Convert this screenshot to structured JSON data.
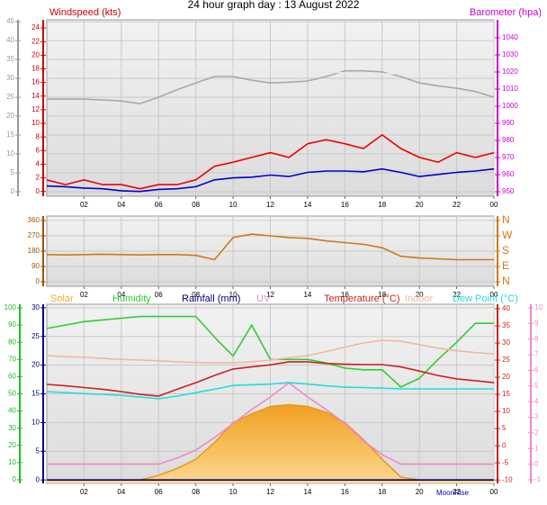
{
  "title": "24 hour graph day : 13 August 2022",
  "annotation": "MoonRise",
  "chart_data": [
    {
      "type": "line",
      "ylabel": "Windspeed (kts)",
      "y2label": "Barometer (hpa)",
      "x": [
        0,
        1,
        2,
        3,
        4,
        5,
        6,
        7,
        8,
        9,
        10,
        11,
        12,
        13,
        14,
        15,
        16,
        17,
        18,
        19,
        20,
        21,
        22,
        23,
        24
      ],
      "xlim": [
        0,
        24
      ],
      "xticks": [
        {
          "value": 2,
          "label": "02"
        },
        {
          "value": 4,
          "label": "04"
        },
        {
          "value": 6,
          "label": "06"
        },
        {
          "value": 8,
          "label": "08"
        },
        10,
        12,
        14,
        16,
        18,
        20,
        22,
        {
          "value": 24,
          "label": "00"
        }
      ],
      "ylim": [
        -0.7,
        25.2
      ],
      "yticks": [
        0,
        2,
        4,
        6,
        8,
        10,
        12,
        14,
        16,
        18,
        20,
        22,
        24
      ],
      "y2lim": [
        947.4,
        1050.5
      ],
      "y2ticks": [
        950,
        960,
        970,
        980,
        990,
        1000,
        1010,
        1020,
        1030,
        1040
      ],
      "y3lim": [
        -1.2,
        45.5
      ],
      "y3ticks": [
        0,
        5,
        10,
        15,
        20,
        25,
        30,
        35,
        40,
        45
      ],
      "grid": true,
      "grid_axis": "y3",
      "series": [
        {
          "color": "#a8a8a8",
          "axis": "y3",
          "values": [
            24.5,
            24.5,
            24.5,
            24.3,
            24,
            23.3,
            25,
            27,
            28.8,
            30.5,
            30.5,
            29.5,
            28.8,
            29,
            29.3,
            30.5,
            32,
            32,
            31.7,
            30.5,
            28.8,
            28,
            27.4,
            26.5,
            25
          ]
        },
        {
          "color": "#e8e8e8",
          "axis": "y2",
          "values": [
            1021,
            1021,
            1021,
            1021,
            1021,
            1021,
            1021,
            1021,
            1021,
            1021,
            1021,
            1021,
            1020.5,
            1020.5,
            1020,
            1020,
            1019.5,
            1019.5,
            1019,
            1019,
            1018.5,
            1018.5,
            1018,
            1018,
            1018
          ]
        },
        {
          "color": "#ee0000",
          "axis": "y",
          "values": [
            1.7,
            1,
            1.7,
            1,
            1,
            0.4,
            1,
            1,
            1.7,
            3.7,
            4.3,
            5,
            5.7,
            5,
            7,
            7.6,
            7,
            6.3,
            8.3,
            6.3,
            5,
            4.3,
            5.7,
            5,
            5.7
          ]
        },
        {
          "color": "#0000cc",
          "axis": "y",
          "values": [
            0.8,
            0.7,
            0.5,
            0.4,
            0.1,
            0,
            0.3,
            0.4,
            0.7,
            1.7,
            2,
            2.1,
            2.4,
            2.2,
            2.8,
            3,
            3,
            2.9,
            3.3,
            2.8,
            2.2,
            2.5,
            2.8,
            3,
            3.3
          ]
        }
      ]
    },
    {
      "type": "line",
      "x": [
        0,
        1,
        2,
        3,
        4,
        5,
        6,
        7,
        8,
        9,
        10,
        11,
        12,
        13,
        14,
        15,
        16,
        17,
        18,
        19,
        20,
        21,
        22,
        23,
        24
      ],
      "xlim": [
        0,
        24
      ],
      "xticks": [
        {
          "value": 2,
          "label": "02"
        },
        {
          "value": 4,
          "label": "04"
        },
        {
          "value": 6,
          "label": "06"
        },
        {
          "value": 8,
          "label": "08"
        },
        10,
        12,
        14,
        16,
        18,
        20,
        22,
        {
          "value": 24,
          "label": "00"
        }
      ],
      "ylim": [
        -26,
        386
      ],
      "yticks": [
        0,
        90,
        180,
        270,
        360
      ],
      "y2lim": [
        -26,
        386
      ],
      "y2ticks": [
        {
          "value": 0,
          "label": "N"
        },
        {
          "value": 90,
          "label": "E"
        },
        {
          "value": 180,
          "label": "S"
        },
        {
          "value": 270,
          "label": "W"
        },
        {
          "value": 360,
          "label": "N"
        }
      ],
      "grid": true,
      "grid_axis": "y",
      "series": [
        {
          "color": "#d07818",
          "axis": "y",
          "values": [
            160,
            158,
            160,
            162,
            160,
            158,
            160,
            160,
            155,
            130,
            260,
            280,
            270,
            260,
            255,
            240,
            230,
            220,
            200,
            150,
            140,
            135,
            130,
            130,
            130
          ]
        }
      ]
    },
    {
      "type": "line",
      "x": [
        0,
        1,
        2,
        3,
        4,
        5,
        6,
        7,
        8,
        9,
        10,
        11,
        12,
        13,
        14,
        15,
        16,
        17,
        18,
        19,
        20,
        21,
        22,
        23,
        24
      ],
      "xlim": [
        0,
        24
      ],
      "xticks": [
        {
          "value": 2,
          "label": "02"
        },
        {
          "value": 4,
          "label": "04"
        },
        {
          "value": 6,
          "label": "06"
        },
        {
          "value": 8,
          "label": "08"
        },
        10,
        12,
        14,
        16,
        18,
        20,
        22,
        {
          "value": 24,
          "label": "00"
        }
      ],
      "ylim": [
        -0.6,
        30.6
      ],
      "yticks": [
        0,
        5,
        10,
        15,
        20,
        25,
        30
      ],
      "y2lim": [
        -2.1,
        102.1
      ],
      "y2ticks": [
        0,
        10,
        20,
        30,
        40,
        50,
        60,
        70,
        80,
        90,
        100
      ],
      "y3lim": [
        -11,
        41.3
      ],
      "y3ticks": [
        -10,
        -5,
        0,
        5,
        10,
        15,
        20,
        25,
        30,
        35,
        40
      ],
      "y4lim": [
        -1.23,
        10.23
      ],
      "y4ticks": [
        -1,
        0,
        1,
        2,
        3,
        4,
        5,
        6,
        7,
        8,
        9,
        10
      ],
      "grid": true,
      "grid_axis": "y",
      "series": [
        {
          "name": "Solar",
          "color": "#f0b030",
          "axis": "y",
          "fill": true,
          "values": [
            0,
            0,
            0,
            0,
            0,
            0,
            0.8,
            2,
            3.6,
            6.5,
            10,
            11.5,
            12.8,
            13.1,
            12.8,
            11.8,
            10,
            7,
            3.6,
            0.5,
            0,
            0,
            0,
            0,
            0
          ]
        },
        {
          "name": "Humidity",
          "color": "#33cc33",
          "axis": "y2",
          "values": [
            88,
            90,
            92,
            93,
            94,
            95,
            95,
            95,
            95,
            83,
            72,
            90,
            70,
            70,
            70,
            68,
            65,
            64,
            64,
            54,
            59,
            70,
            80,
            91,
            91
          ]
        },
        {
          "name": "Rainfall (mm)",
          "color": "#000080",
          "axis": "y",
          "values": [
            0,
            0,
            0,
            0,
            0,
            0,
            0,
            0,
            0,
            0,
            0,
            0,
            0,
            0,
            0,
            0,
            0,
            0,
            0,
            0,
            0,
            0,
            0,
            0,
            0
          ]
        },
        {
          "name": "UV",
          "color": "#ee88cc",
          "axis": "y4",
          "values": [
            0,
            0,
            0,
            0,
            0,
            0,
            0,
            0.4,
            0.9,
            1.7,
            2.6,
            3.5,
            4.3,
            5.2,
            4.3,
            3.5,
            2.6,
            1.5,
            0.6,
            0,
            0,
            0,
            0,
            0,
            0
          ]
        },
        {
          "name": "Temperature (°C)",
          "color": "#cc2020",
          "axis": "y3",
          "values": [
            17.9,
            17.5,
            17,
            16.5,
            15.8,
            15,
            14.5,
            16.5,
            18.4,
            20.5,
            22.4,
            23,
            23.6,
            24.5,
            24.5,
            24,
            23.8,
            23.7,
            23.7,
            23,
            21.8,
            20.5,
            19.5,
            19,
            18.4
          ]
        },
        {
          "name": "Indoor",
          "color": "#f0b8a0",
          "axis": "y3",
          "values": [
            26.3,
            26,
            25.8,
            25.5,
            25.2,
            25,
            24.8,
            24.5,
            24.3,
            24.2,
            24.2,
            24.5,
            25,
            25.7,
            26.3,
            27.5,
            28.8,
            30,
            30.8,
            30.5,
            29.5,
            28.5,
            27.7,
            27.2,
            26.8
          ]
        },
        {
          "name": "Dew Point (°C)",
          "color": "#22dddd",
          "axis": "y3",
          "values": [
            15.8,
            15.5,
            15.2,
            15,
            14.7,
            14.2,
            13.7,
            14.5,
            15.5,
            16.5,
            17.6,
            17.8,
            18,
            18.4,
            18,
            17.5,
            17.1,
            17,
            16.8,
            16.6,
            16.6,
            16.6,
            16.6,
            16.6,
            16.6
          ]
        }
      ]
    }
  ]
}
